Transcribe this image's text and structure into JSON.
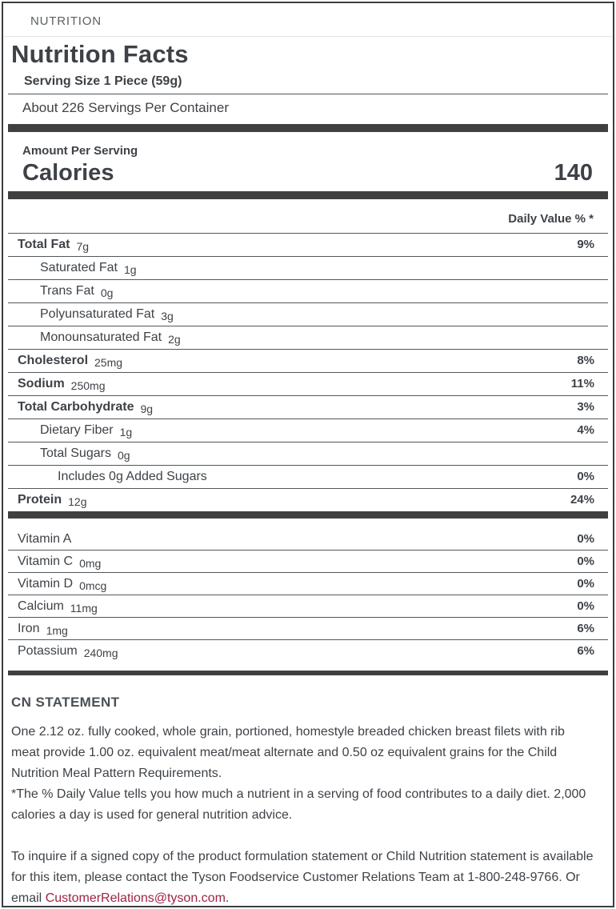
{
  "header": {
    "section_tag": "NUTRITION",
    "title": "Nutrition Facts",
    "serving_size": "Serving Size 1 Piece (59g)",
    "servings_per_container": "About 226 Servings Per Container"
  },
  "calories": {
    "amount_per_serving_label": "Amount Per Serving",
    "label": "Calories",
    "value": "140"
  },
  "daily_value_header": "Daily Value % *",
  "nutrients": [
    {
      "name": "Total Fat",
      "amount": "7g",
      "dv": "9%"
    },
    {
      "name": "Saturated Fat",
      "amount": "1g",
      "dv": ""
    },
    {
      "name": "Trans Fat",
      "amount": "0g",
      "dv": ""
    },
    {
      "name": "Polyunsaturated Fat",
      "amount": "3g",
      "dv": ""
    },
    {
      "name": "Monounsaturated Fat",
      "amount": "2g",
      "dv": ""
    },
    {
      "name": "Cholesterol",
      "amount": "25mg",
      "dv": "8%"
    },
    {
      "name": "Sodium",
      "amount": "250mg",
      "dv": "11%"
    },
    {
      "name": "Total Carbohydrate",
      "amount": "9g",
      "dv": "3%"
    },
    {
      "name": "Dietary Fiber",
      "amount": "1g",
      "dv": "4%"
    },
    {
      "name": "Total Sugars",
      "amount": "0g",
      "dv": ""
    },
    {
      "name": "Includes 0g Added Sugars",
      "amount": "",
      "dv": "0%"
    },
    {
      "name": "Protein",
      "amount": "12g",
      "dv": "24%"
    }
  ],
  "micronutrients": [
    {
      "name": "Vitamin A",
      "amount": "",
      "dv": "0%"
    },
    {
      "name": "Vitamin C",
      "amount": "0mg",
      "dv": "0%"
    },
    {
      "name": "Vitamin D",
      "amount": "0mcg",
      "dv": "0%"
    },
    {
      "name": "Calcium",
      "amount": "11mg",
      "dv": "0%"
    },
    {
      "name": "Iron",
      "amount": "1mg",
      "dv": "6%"
    },
    {
      "name": "Potassium",
      "amount": "240mg",
      "dv": "6%"
    }
  ],
  "cn_statement": {
    "heading": "CN STATEMENT",
    "body": "One 2.12 oz. fully cooked, whole grain, portioned, homestyle breaded chicken breast filets with rib meat provide 1.00 oz. equivalent meat/meat alternate and 0.50 oz equivalent grains for the Child Nutrition Meal Pattern Requirements.",
    "daily_value_note": "*The % Daily Value tells you how much a nutrient in a serving of food contributes to a daily diet. 2,000 calories a day is used for general nutrition advice.",
    "contact_prefix": "To inquire if a signed copy of the product formulation statement or Child Nutrition statement is available for this item, please contact the Tyson Foodservice Customer Relations Team at 1-800-248-9766. Or email ",
    "contact_email": "CustomerRelations@tyson.com",
    "contact_suffix": "."
  },
  "colors": {
    "text": "#3e4247",
    "muted": "#5a5f63",
    "muted_dark": "#4a5056",
    "bar": "#404040",
    "line": "#53575b",
    "lightline": "#e3e3e3",
    "border": "#3b3f42",
    "email_link": "#9e2442"
  }
}
